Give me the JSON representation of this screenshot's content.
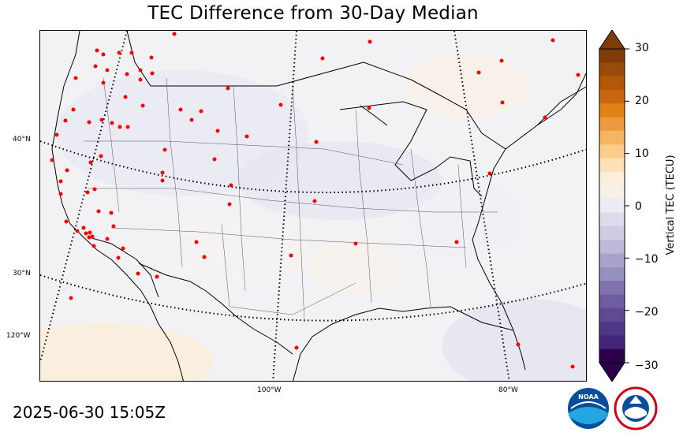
{
  "title": "TEC Difference from 30-Day Median",
  "timestamp": "2025-06-30 15:05Z",
  "colorbar": {
    "label": "Vertical TEC (TECU)",
    "ticks": [
      "30",
      "20",
      "10",
      "0",
      "−10",
      "−20",
      "−30"
    ],
    "colors_top_to_bottom": [
      "#7f3b08",
      "#994b0a",
      "#b35806",
      "#c8670d",
      "#e08214",
      "#ec9b3c",
      "#f6b65f",
      "#fdcb8a",
      "#fee0b6",
      "#fbeedb",
      "#f5f0ea",
      "#eceaf2",
      "#dcdbec",
      "#cfcde4",
      "#bdb9da",
      "#a8a3cd",
      "#9590c0",
      "#8073ac",
      "#6f5ca1",
      "#5f4a93",
      "#4f3787",
      "#41267a",
      "#2d004b"
    ]
  },
  "map": {
    "latitude_labels": [
      "40°N",
      "30°N",
      "120°W"
    ],
    "longitude_labels": [
      "100°W",
      "80°W"
    ],
    "land_color": "#f2f2f4",
    "station_color": "#ff0000"
  },
  "logos": {
    "noaa": "NOAA",
    "nws": "NATIONAL WEATHER SERVICE"
  }
}
